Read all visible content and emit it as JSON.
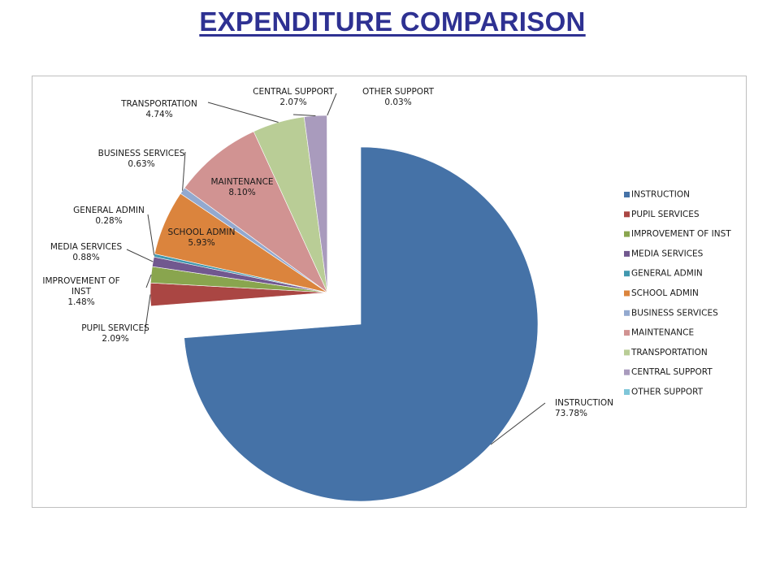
{
  "page": {
    "title": "EXPENDITURE COMPARISON"
  },
  "chart_data": {
    "type": "pie",
    "title": "",
    "legend_position": "right",
    "exploded": true,
    "slices": [
      {
        "name": "INSTRUCTION",
        "value": 73.78,
        "label": "73.78%",
        "color": "#4572a7"
      },
      {
        "name": "PUPIL SERVICES",
        "value": 2.09,
        "label": "2.09%",
        "color": "#aa4643"
      },
      {
        "name": "IMPROVEMENT OF INST",
        "value": 1.48,
        "label": "1.48%",
        "color": "#89a54e"
      },
      {
        "name": "MEDIA SERVICES",
        "value": 0.88,
        "label": "0.88%",
        "color": "#71588f"
      },
      {
        "name": "GENERAL ADMIN",
        "value": 0.28,
        "label": "0.28%",
        "color": "#4198af"
      },
      {
        "name": "SCHOOL ADMIN",
        "value": 5.93,
        "label": "5.93%",
        "color": "#db843d"
      },
      {
        "name": "BUSINESS SERVICES",
        "value": 0.63,
        "label": "0.63%",
        "color": "#93a9cf"
      },
      {
        "name": "MAINTENANCE",
        "value": 8.1,
        "label": "8.10%",
        "color": "#d19392"
      },
      {
        "name": "TRANSPORTATION",
        "value": 4.74,
        "label": "4.74%",
        "color": "#b9cd96"
      },
      {
        "name": "CENTRAL SUPPORT",
        "value": 2.07,
        "label": "2.07%",
        "color": "#a99bbd"
      },
      {
        "name": "OTHER SUPPORT",
        "value": 0.03,
        "label": "0.03%",
        "color": "#7fc6d9"
      }
    ]
  }
}
